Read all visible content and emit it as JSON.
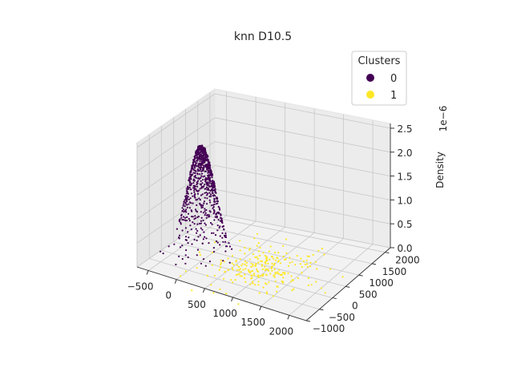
{
  "chart_data": {
    "type": "scatter",
    "projection": "3d",
    "title": "knn D10.5",
    "xlabel": "",
    "ylabel": "",
    "zlabel": "Density",
    "z_offset_text": "1e−6",
    "xlim": [
      -700,
      2300
    ],
    "ylim": [
      -1000,
      2200
    ],
    "zlim": [
      0,
      2.6
    ],
    "x_ticks": [
      "−500",
      "0",
      "500",
      "1000",
      "1500",
      "2000"
    ],
    "x_tick_values": [
      -500,
      0,
      500,
      1000,
      1500,
      2000
    ],
    "y_ticks": [
      "−1000",
      "−500",
      "0",
      "500",
      "1000",
      "1500",
      "2000"
    ],
    "y_tick_values": [
      -1000,
      -500,
      0,
      500,
      1000,
      1500,
      2000
    ],
    "z_ticks": [
      "0.0",
      "0.5",
      "1.0",
      "1.5",
      "2.0",
      "2.5"
    ],
    "z_tick_values": [
      0,
      0.5,
      1.0,
      1.5,
      2.0,
      2.5
    ],
    "grid": true,
    "legend": {
      "title": "Clusters",
      "placement": "top-right",
      "entries": [
        {
          "label": "0",
          "color": "#440154"
        },
        {
          "label": "1",
          "color": "#fde725"
        }
      ]
    },
    "series": [
      {
        "name": "0",
        "color": "#440154",
        "peak": {
          "x": 0,
          "y": 0,
          "z": 2.45
        },
        "spread_sigma": 180,
        "n_points": 820
      },
      {
        "name": "1",
        "color": "#fde725",
        "center": {
          "x": 900,
          "y": 300,
          "z": 0.03
        },
        "spread_sigma": 520,
        "n_points": 240
      }
    ]
  }
}
